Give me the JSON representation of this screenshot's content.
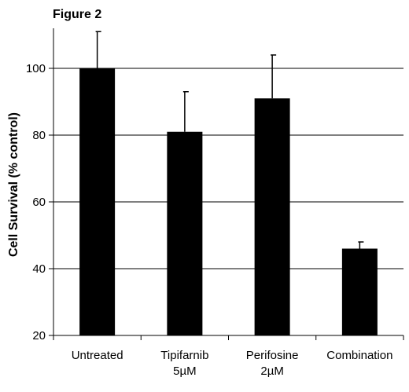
{
  "figure_title": "Figure 2",
  "chart_data": {
    "type": "bar",
    "categories": [
      [
        "Untreated"
      ],
      [
        "Tipifarnib",
        "5µM"
      ],
      [
        "Perifosine",
        "2µM"
      ],
      [
        "Combination"
      ]
    ],
    "values": [
      100,
      81,
      91,
      46
    ],
    "error_upper": [
      111,
      93,
      104,
      48
    ],
    "title": "",
    "xlabel": "",
    "ylabel": "Cell Survival (% control)",
    "ylim": [
      20,
      112
    ],
    "yticks": [
      20,
      40,
      60,
      80,
      100
    ],
    "grid": true,
    "bar_color": "#000000",
    "grid_color": "#000000"
  }
}
